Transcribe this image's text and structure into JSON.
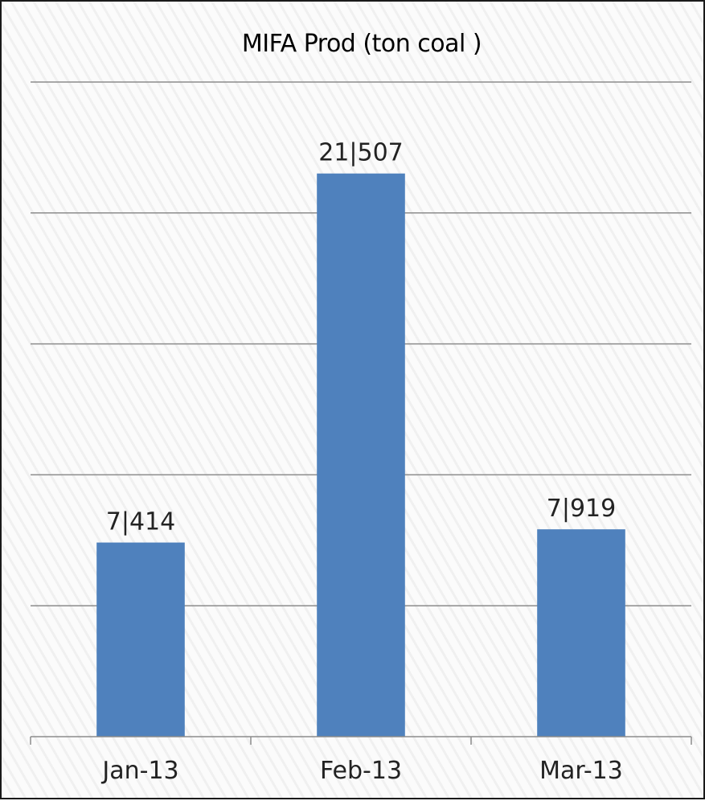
{
  "chart_data": {
    "type": "bar",
    "title": "MIFA Prod (ton coal )",
    "categories": [
      "Jan-13",
      "Feb-13",
      "Mar-13"
    ],
    "series": [
      {
        "values": [
          7414,
          21507,
          7919
        ],
        "labels": [
          "7|414",
          "21|507",
          "7|919"
        ],
        "color": "#4f81bd"
      }
    ],
    "xlabel": "",
    "ylabel": "",
    "ylim": [
      0,
      25000
    ],
    "grid": true,
    "legend": "none"
  }
}
